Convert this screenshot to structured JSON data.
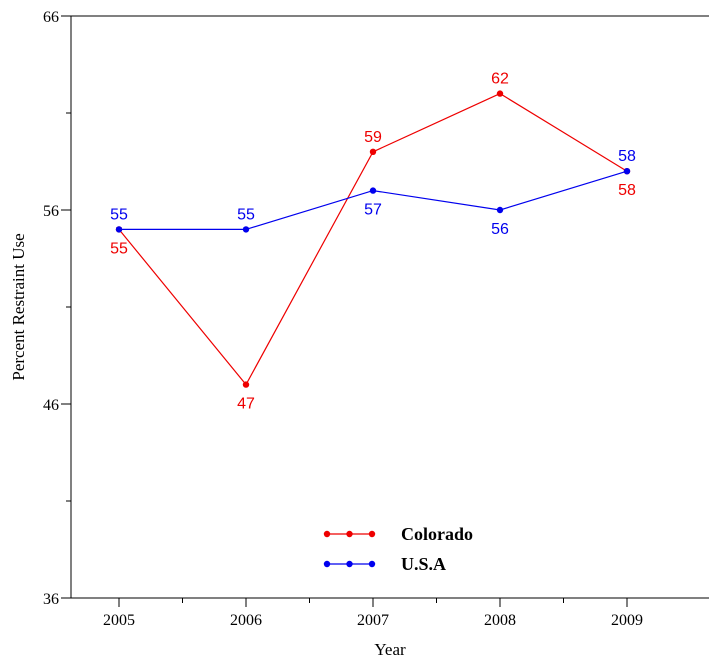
{
  "chart_data": {
    "type": "line",
    "title": "",
    "xlabel": "Year",
    "ylabel": "Percent Restraint Use",
    "categories": [
      "2005",
      "2006",
      "2007",
      "2008",
      "2009"
    ],
    "ylim": [
      36,
      66
    ],
    "yticks": [
      "36",
      "46",
      "56",
      "66"
    ],
    "grid": false,
    "legend_position": "bottom-center",
    "series": [
      {
        "name": "Colorado",
        "color": "#ee0000",
        "values": [
          55,
          47,
          59,
          62,
          58
        ],
        "labels": [
          "55",
          "47",
          "59",
          "62",
          "58"
        ],
        "label_side": [
          "below",
          "below",
          "above",
          "above",
          "below"
        ]
      },
      {
        "name": "U.S.A",
        "color": "#0000ee",
        "values": [
          55,
          55,
          57,
          56,
          58
        ],
        "labels": [
          "55",
          "55",
          "57",
          "56",
          "58"
        ],
        "label_side": [
          "above",
          "above",
          "below",
          "below",
          "above"
        ]
      }
    ]
  }
}
